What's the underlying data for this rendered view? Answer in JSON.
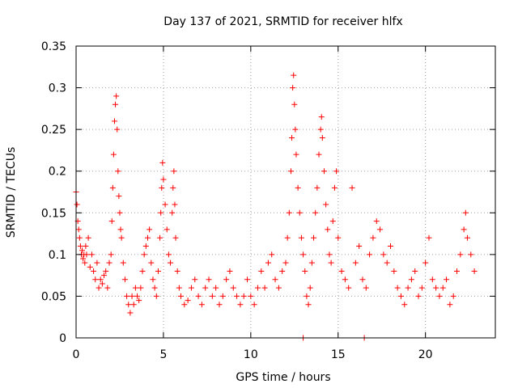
{
  "chart_data": {
    "type": "scatter",
    "title": "Day 137 of 2021, SRMTID for receiver hlfx",
    "xlabel": "GPS time / hours",
    "ylabel": "SRMTID / TECUs",
    "xlim": [
      0,
      24
    ],
    "ylim": [
      0,
      0.35
    ],
    "xticks": [
      0,
      5,
      10,
      15,
      20
    ],
    "xtick_labels": [
      "0",
      "5",
      "10",
      "15",
      "20"
    ],
    "yticks": [
      0,
      0.05,
      0.1,
      0.15,
      0.2,
      0.25,
      0.3,
      0.35
    ],
    "ytick_labels": [
      "0",
      "0.05",
      "0.1",
      "0.15",
      "0.2",
      "0.25",
      "0.3",
      "0.35"
    ],
    "grid": true,
    "marker": "+",
    "series": [
      {
        "name": "SRMTID",
        "color": "#ff0000",
        "points": [
          [
            0.0,
            0.175
          ],
          [
            0.05,
            0.16
          ],
          [
            0.1,
            0.14
          ],
          [
            0.15,
            0.13
          ],
          [
            0.2,
            0.12
          ],
          [
            0.25,
            0.11
          ],
          [
            0.3,
            0.1
          ],
          [
            0.35,
            0.105
          ],
          [
            0.4,
            0.095
          ],
          [
            0.45,
            0.1
          ],
          [
            0.5,
            0.09
          ],
          [
            0.55,
            0.11
          ],
          [
            0.6,
            0.1
          ],
          [
            0.7,
            0.12
          ],
          [
            0.8,
            0.085
          ],
          [
            0.9,
            0.1
          ],
          [
            1.0,
            0.08
          ],
          [
            1.1,
            0.07
          ],
          [
            1.2,
            0.09
          ],
          [
            1.3,
            0.06
          ],
          [
            1.4,
            0.07
          ],
          [
            1.5,
            0.065
          ],
          [
            1.6,
            0.075
          ],
          [
            1.7,
            0.08
          ],
          [
            1.8,
            0.06
          ],
          [
            1.9,
            0.09
          ],
          [
            2.0,
            0.1
          ],
          [
            2.05,
            0.14
          ],
          [
            2.1,
            0.18
          ],
          [
            2.15,
            0.22
          ],
          [
            2.2,
            0.26
          ],
          [
            2.25,
            0.28
          ],
          [
            2.3,
            0.29
          ],
          [
            2.35,
            0.25
          ],
          [
            2.4,
            0.2
          ],
          [
            2.45,
            0.17
          ],
          [
            2.5,
            0.15
          ],
          [
            2.55,
            0.13
          ],
          [
            2.6,
            0.12
          ],
          [
            2.7,
            0.09
          ],
          [
            2.8,
            0.07
          ],
          [
            2.9,
            0.05
          ],
          [
            3.0,
            0.04
          ],
          [
            3.1,
            0.03
          ],
          [
            3.2,
            0.05
          ],
          [
            3.3,
            0.04
          ],
          [
            3.4,
            0.06
          ],
          [
            3.5,
            0.05
          ],
          [
            3.6,
            0.045
          ],
          [
            3.7,
            0.06
          ],
          [
            3.8,
            0.08
          ],
          [
            3.9,
            0.1
          ],
          [
            4.0,
            0.11
          ],
          [
            4.1,
            0.12
          ],
          [
            4.2,
            0.13
          ],
          [
            4.3,
            0.09
          ],
          [
            4.4,
            0.07
          ],
          [
            4.5,
            0.06
          ],
          [
            4.6,
            0.05
          ],
          [
            4.7,
            0.08
          ],
          [
            4.8,
            0.12
          ],
          [
            4.85,
            0.15
          ],
          [
            4.9,
            0.18
          ],
          [
            4.95,
            0.21
          ],
          [
            5.0,
            0.19
          ],
          [
            5.1,
            0.16
          ],
          [
            5.2,
            0.13
          ],
          [
            5.3,
            0.1
          ],
          [
            5.4,
            0.09
          ],
          [
            5.5,
            0.15
          ],
          [
            5.55,
            0.18
          ],
          [
            5.6,
            0.2
          ],
          [
            5.65,
            0.16
          ],
          [
            5.7,
            0.12
          ],
          [
            5.8,
            0.08
          ],
          [
            5.9,
            0.06
          ],
          [
            6.0,
            0.05
          ],
          [
            6.2,
            0.04
          ],
          [
            6.4,
            0.045
          ],
          [
            6.6,
            0.06
          ],
          [
            6.8,
            0.07
          ],
          [
            7.0,
            0.05
          ],
          [
            7.2,
            0.04
          ],
          [
            7.4,
            0.06
          ],
          [
            7.6,
            0.07
          ],
          [
            7.8,
            0.05
          ],
          [
            8.0,
            0.06
          ],
          [
            8.2,
            0.04
          ],
          [
            8.4,
            0.05
          ],
          [
            8.6,
            0.07
          ],
          [
            8.8,
            0.08
          ],
          [
            9.0,
            0.06
          ],
          [
            9.2,
            0.05
          ],
          [
            9.4,
            0.04
          ],
          [
            9.6,
            0.05
          ],
          [
            9.8,
            0.07
          ],
          [
            10.0,
            0.05
          ],
          [
            10.2,
            0.04
          ],
          [
            10.4,
            0.06
          ],
          [
            10.6,
            0.08
          ],
          [
            10.8,
            0.06
          ],
          [
            11.0,
            0.09
          ],
          [
            11.2,
            0.1
          ],
          [
            11.4,
            0.07
          ],
          [
            11.6,
            0.06
          ],
          [
            11.8,
            0.08
          ],
          [
            12.0,
            0.09
          ],
          [
            12.1,
            0.12
          ],
          [
            12.2,
            0.15
          ],
          [
            12.3,
            0.2
          ],
          [
            12.35,
            0.24
          ],
          [
            12.4,
            0.3
          ],
          [
            12.45,
            0.315
          ],
          [
            12.5,
            0.28
          ],
          [
            12.55,
            0.25
          ],
          [
            12.6,
            0.22
          ],
          [
            12.7,
            0.18
          ],
          [
            12.8,
            0.15
          ],
          [
            12.9,
            0.12
          ],
          [
            13.0,
            0.1
          ],
          [
            13.1,
            0.08
          ],
          [
            13.2,
            0.05
          ],
          [
            13.3,
            0.04
          ],
          [
            13.4,
            0.06
          ],
          [
            13.5,
            0.09
          ],
          [
            13.6,
            0.12
          ],
          [
            13.7,
            0.15
          ],
          [
            13.8,
            0.18
          ],
          [
            13.9,
            0.22
          ],
          [
            14.0,
            0.25
          ],
          [
            14.05,
            0.265
          ],
          [
            14.1,
            0.24
          ],
          [
            14.2,
            0.2
          ],
          [
            14.3,
            0.16
          ],
          [
            14.4,
            0.13
          ],
          [
            14.5,
            0.1
          ],
          [
            14.6,
            0.09
          ],
          [
            14.7,
            0.14
          ],
          [
            14.8,
            0.18
          ],
          [
            14.9,
            0.2
          ],
          [
            15.0,
            0.12
          ],
          [
            15.2,
            0.08
          ],
          [
            15.4,
            0.07
          ],
          [
            15.6,
            0.06
          ],
          [
            15.8,
            0.18
          ],
          [
            16.0,
            0.09
          ],
          [
            16.2,
            0.11
          ],
          [
            16.4,
            0.07
          ],
          [
            16.6,
            0.06
          ],
          [
            16.8,
            0.1
          ],
          [
            17.0,
            0.12
          ],
          [
            17.2,
            0.14
          ],
          [
            17.4,
            0.13
          ],
          [
            17.6,
            0.1
          ],
          [
            17.8,
            0.09
          ],
          [
            18.0,
            0.11
          ],
          [
            18.2,
            0.08
          ],
          [
            18.4,
            0.06
          ],
          [
            18.6,
            0.05
          ],
          [
            18.8,
            0.04
          ],
          [
            19.0,
            0.06
          ],
          [
            19.2,
            0.07
          ],
          [
            19.4,
            0.08
          ],
          [
            19.6,
            0.05
          ],
          [
            19.8,
            0.06
          ],
          [
            20.0,
            0.09
          ],
          [
            20.2,
            0.12
          ],
          [
            20.4,
            0.07
          ],
          [
            20.6,
            0.06
          ],
          [
            20.8,
            0.05
          ],
          [
            21.0,
            0.06
          ],
          [
            21.2,
            0.07
          ],
          [
            21.4,
            0.04
          ],
          [
            21.6,
            0.05
          ],
          [
            21.8,
            0.08
          ],
          [
            22.0,
            0.1
          ],
          [
            22.2,
            0.13
          ],
          [
            22.3,
            0.15
          ],
          [
            22.4,
            0.12
          ],
          [
            22.6,
            0.1
          ],
          [
            22.8,
            0.08
          ],
          [
            13.0,
            0.0
          ],
          [
            16.5,
            0.0
          ]
        ]
      }
    ]
  }
}
